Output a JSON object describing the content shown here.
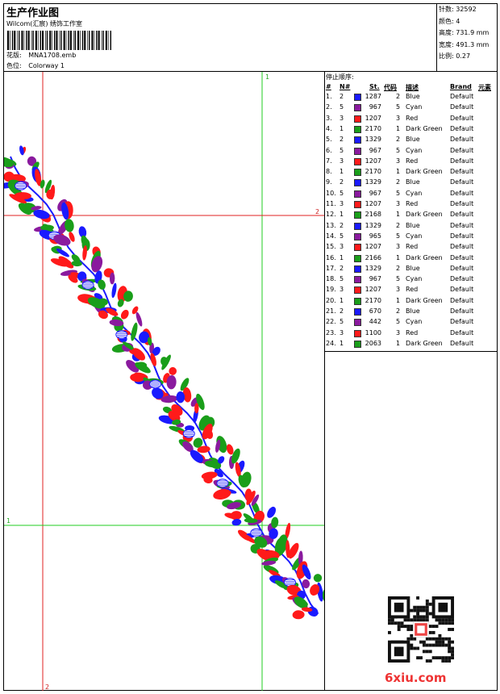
{
  "header": {
    "title": "生产作业图",
    "subtitle": "Wilcom(汇宸) 绣饰工作室",
    "design_label": "花版:",
    "design_value": "MNA1708.emb",
    "colorway_label": "色位:",
    "colorway_value": "Colorway 1"
  },
  "stats": {
    "stitches_label": "针数:",
    "stitches": "32592",
    "colors_label": "颜色:",
    "colors": "4",
    "height_label": "高度:",
    "height": "731.9 mm",
    "width_label": "宽度:",
    "width": "491.3 mm",
    "scale_label": "比例:",
    "scale": "0.27"
  },
  "guides": {
    "v1": "1",
    "v2": "2",
    "h1": "1",
    "h2": "2"
  },
  "stop_sequence": {
    "title": "停止顺序:",
    "columns": [
      "#",
      "N#",
      "St.",
      "代码",
      "描述",
      "Brand",
      "元素"
    ],
    "rows": [
      {
        "n": "1.",
        "needle": "2",
        "color": "#1a1aff",
        "st": "1287",
        "code": "2",
        "desc": "Blue",
        "brand": "Default"
      },
      {
        "n": "2.",
        "needle": "5",
        "color": "#8a1a9e",
        "st": "967",
        "code": "5",
        "desc": "Cyan",
        "brand": "Default"
      },
      {
        "n": "3.",
        "needle": "3",
        "color": "#ff1a1a",
        "st": "1207",
        "code": "3",
        "desc": "Red",
        "brand": "Default"
      },
      {
        "n": "4.",
        "needle": "1",
        "color": "#1a9e1a",
        "st": "2170",
        "code": "1",
        "desc": "Dark Green",
        "brand": "Default"
      },
      {
        "n": "5.",
        "needle": "2",
        "color": "#1a1aff",
        "st": "1329",
        "code": "2",
        "desc": "Blue",
        "brand": "Default"
      },
      {
        "n": "6.",
        "needle": "5",
        "color": "#8a1a9e",
        "st": "967",
        "code": "5",
        "desc": "Cyan",
        "brand": "Default"
      },
      {
        "n": "7.",
        "needle": "3",
        "color": "#ff1a1a",
        "st": "1207",
        "code": "3",
        "desc": "Red",
        "brand": "Default"
      },
      {
        "n": "8.",
        "needle": "1",
        "color": "#1a9e1a",
        "st": "2170",
        "code": "1",
        "desc": "Dark Green",
        "brand": "Default"
      },
      {
        "n": "9.",
        "needle": "2",
        "color": "#1a1aff",
        "st": "1329",
        "code": "2",
        "desc": "Blue",
        "brand": "Default"
      },
      {
        "n": "10.",
        "needle": "5",
        "color": "#8a1a9e",
        "st": "967",
        "code": "5",
        "desc": "Cyan",
        "brand": "Default"
      },
      {
        "n": "11.",
        "needle": "3",
        "color": "#ff1a1a",
        "st": "1207",
        "code": "3",
        "desc": "Red",
        "brand": "Default"
      },
      {
        "n": "12.",
        "needle": "1",
        "color": "#1a9e1a",
        "st": "2168",
        "code": "1",
        "desc": "Dark Green",
        "brand": "Default"
      },
      {
        "n": "13.",
        "needle": "2",
        "color": "#1a1aff",
        "st": "1329",
        "code": "2",
        "desc": "Blue",
        "brand": "Default"
      },
      {
        "n": "14.",
        "needle": "5",
        "color": "#8a1a9e",
        "st": "965",
        "code": "5",
        "desc": "Cyan",
        "brand": "Default"
      },
      {
        "n": "15.",
        "needle": "3",
        "color": "#ff1a1a",
        "st": "1207",
        "code": "3",
        "desc": "Red",
        "brand": "Default"
      },
      {
        "n": "16.",
        "needle": "1",
        "color": "#1a9e1a",
        "st": "2166",
        "code": "1",
        "desc": "Dark Green",
        "brand": "Default"
      },
      {
        "n": "17.",
        "needle": "2",
        "color": "#1a1aff",
        "st": "1329",
        "code": "2",
        "desc": "Blue",
        "brand": "Default"
      },
      {
        "n": "18.",
        "needle": "5",
        "color": "#8a1a9e",
        "st": "967",
        "code": "5",
        "desc": "Cyan",
        "brand": "Default"
      },
      {
        "n": "19.",
        "needle": "3",
        "color": "#ff1a1a",
        "st": "1207",
        "code": "3",
        "desc": "Red",
        "brand": "Default"
      },
      {
        "n": "20.",
        "needle": "1",
        "color": "#1a9e1a",
        "st": "2170",
        "code": "1",
        "desc": "Dark Green",
        "brand": "Default"
      },
      {
        "n": "21.",
        "needle": "2",
        "color": "#1a1aff",
        "st": "670",
        "code": "2",
        "desc": "Blue",
        "brand": "Default"
      },
      {
        "n": "22.",
        "needle": "5",
        "color": "#8a1a9e",
        "st": "442",
        "code": "5",
        "desc": "Cyan",
        "brand": "Default"
      },
      {
        "n": "23.",
        "needle": "3",
        "color": "#ff1a1a",
        "st": "1100",
        "code": "3",
        "desc": "Red",
        "brand": "Default"
      },
      {
        "n": "24.",
        "needle": "1",
        "color": "#1a9e1a",
        "st": "2063",
        "code": "1",
        "desc": "Dark Green",
        "brand": "Default"
      }
    ]
  },
  "watermark": "6xiu.com",
  "design_colors": {
    "blue": "#1a1aff",
    "purple": "#8a1a9e",
    "red": "#ff1a1a",
    "green": "#1a9e1a"
  }
}
